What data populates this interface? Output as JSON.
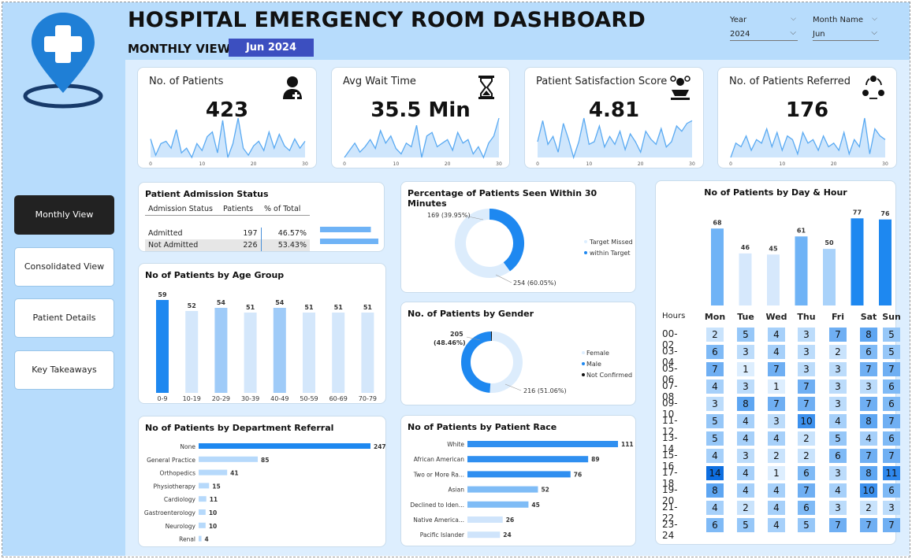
{
  "header": {
    "title": "HOSPITAL EMERGENCY ROOM DASHBOARD",
    "subtitle": "MONTHLY VIEW",
    "month_badge": "Jun 2024",
    "year_label": "Year",
    "year_value": "2024",
    "month_label": "Month Name",
    "month_value": "Jun"
  },
  "nav": [
    {
      "label": "Monthly View",
      "active": true
    },
    {
      "label": "Consolidated View",
      "active": false
    },
    {
      "label": "Patient Details",
      "active": false
    },
    {
      "label": "Key Takeaways",
      "active": false
    }
  ],
  "kpis": [
    {
      "title": "No. of Patients",
      "value": "423",
      "icon": "patient-icon"
    },
    {
      "title": "Avg Wait Time",
      "value": "35.5 Min",
      "icon": "hourglass-icon"
    },
    {
      "title": "Patient Satisfaction Score",
      "value": "4.81",
      "icon": "satisfaction-icon"
    },
    {
      "title": "No. of Patients Referred",
      "value": "176",
      "icon": "referral-icon"
    }
  ],
  "spark_ticks": [
    "0",
    "10",
    "20",
    "30"
  ],
  "colors": {
    "accent": "#1e88f0",
    "light": "#a9d2fa",
    "pale": "#d9ebfc",
    "header_bg": "#b7dcfc",
    "badge": "#3c4fc0"
  },
  "admission": {
    "title": "Patient Admission Status",
    "columns": [
      "Admission Status",
      "Patients",
      "% of Total"
    ],
    "rows": [
      {
        "status": "Admitted",
        "patients": "197",
        "pct": "46.57%",
        "value": 197
      },
      {
        "status": "Not Admitted",
        "patients": "226",
        "pct": "53.43%",
        "value": 226
      }
    ]
  },
  "seen30": {
    "title": "Percentage of Patients Seen Within 30 Minutes",
    "legend": [
      "Target Missed",
      "within Target"
    ],
    "label_a": "169 (39.95%)",
    "label_b": "254 (60.05%)"
  },
  "gender": {
    "title": "No. of Patients by Gender",
    "legend": [
      "Female",
      "Male",
      "Not Confirmed"
    ],
    "label_a": "205",
    "label_a2": "(48.46%)",
    "label_b": "216 (51.06%)"
  },
  "age": {
    "title": "No of Patients by Age Group"
  },
  "dept": {
    "title": "No of Patients by Department Referral"
  },
  "race": {
    "title": "No of Patients by Patient Race"
  },
  "dayhour": {
    "title": "No of Patients by Day & Hour",
    "hours_label": "Hours"
  },
  "chart_data": [
    {
      "type": "pie",
      "title": "Percentage of Patients Seen Within 30 Minutes",
      "categories": [
        "Target Missed",
        "within Target"
      ],
      "values": [
        169,
        254
      ]
    },
    {
      "type": "pie",
      "title": "No. of Patients by Gender",
      "categories": [
        "Female",
        "Male",
        "Not Confirmed"
      ],
      "values": [
        216,
        205,
        2
      ]
    },
    {
      "type": "bar",
      "title": "No of Patients by Age Group",
      "categories": [
        "0-9",
        "10-19",
        "20-29",
        "30-39",
        "40-49",
        "50-59",
        "60-69",
        "70-79"
      ],
      "values": [
        59,
        52,
        54,
        51,
        54,
        51,
        51,
        51
      ]
    },
    {
      "type": "bar",
      "orientation": "horizontal",
      "title": "No of Patients by Department Referral",
      "categories": [
        "None",
        "General Practice",
        "Orthopedics",
        "Physiotherapy",
        "Cardiology",
        "Gastroenterology",
        "Neurology",
        "Renal"
      ],
      "values": [
        247,
        85,
        41,
        15,
        11,
        10,
        10,
        4
      ]
    },
    {
      "type": "bar",
      "orientation": "horizontal",
      "title": "No of Patients by Patient Race",
      "categories": [
        "White",
        "African American",
        "Two or More Ra...",
        "Asian",
        "Declined to Iden...",
        "Native America...",
        "Pacific Islander"
      ],
      "values": [
        111,
        89,
        76,
        52,
        45,
        26,
        24
      ]
    },
    {
      "type": "bar",
      "title": "No of Patients by Day & Hour",
      "categories": [
        "Mon",
        "Tue",
        "Wed",
        "Thu",
        "Fri",
        "Sat",
        "Sun"
      ],
      "values": [
        68,
        46,
        45,
        61,
        50,
        77,
        76
      ]
    },
    {
      "type": "heatmap",
      "title": "No of Patients by Day & Hour",
      "x": [
        "Mon",
        "Tue",
        "Wed",
        "Thu",
        "Fri",
        "Sat",
        "Sun"
      ],
      "y": [
        "00-02",
        "03-04",
        "05-06",
        "07-08",
        "09-10",
        "11-12",
        "13-14",
        "15-16",
        "17-18",
        "19-20",
        "21-22",
        "23-24"
      ],
      "values": [
        [
          2,
          5,
          4,
          3,
          7,
          8,
          5
        ],
        [
          6,
          3,
          4,
          3,
          2,
          6,
          5
        ],
        [
          7,
          1,
          7,
          3,
          3,
          7,
          7
        ],
        [
          4,
          3,
          1,
          7,
          3,
          3,
          6
        ],
        [
          3,
          8,
          7,
          7,
          3,
          7,
          6
        ],
        [
          5,
          4,
          3,
          10,
          4,
          8,
          7
        ],
        [
          5,
          4,
          4,
          2,
          5,
          4,
          6
        ],
        [
          4,
          3,
          2,
          2,
          6,
          7,
          7
        ],
        [
          14,
          4,
          1,
          6,
          3,
          8,
          11
        ],
        [
          8,
          4,
          4,
          7,
          4,
          10,
          6
        ],
        [
          4,
          2,
          4,
          6,
          3,
          2,
          3
        ],
        [
          6,
          5,
          4,
          5,
          7,
          7,
          7
        ]
      ]
    },
    {
      "type": "area",
      "title": "No. of Patients",
      "x_range": [
        0,
        30
      ],
      "values": [
        16,
        9,
        14,
        15,
        12,
        20,
        10,
        12,
        8,
        14,
        11,
        17,
        19,
        10,
        24,
        8,
        14,
        25,
        12,
        9,
        13,
        15,
        11,
        19,
        12,
        18,
        13,
        11,
        16,
        12,
        15
      ]
    },
    {
      "type": "area",
      "title": "Avg Wait Time",
      "x_range": [
        0,
        30
      ],
      "values": [
        30,
        34,
        38,
        33,
        36,
        40,
        35,
        45,
        38,
        42,
        35,
        32,
        38,
        36,
        48,
        30,
        42,
        44,
        36,
        38,
        40,
        34,
        44,
        38,
        40,
        32,
        36,
        30,
        38,
        42,
        52
      ]
    },
    {
      "type": "area",
      "title": "Patient Satisfaction Score",
      "x_range": [
        0,
        30
      ],
      "values": [
        4.6,
        5.4,
        4.5,
        4.8,
        4.2,
        5.3,
        4.7,
        4.0,
        4.6,
        5.5,
        4.5,
        4.6,
        5.2,
        4.4,
        4.8,
        4.5,
        5.0,
        4.3,
        4.9,
        4.6,
        4.2,
        5.0,
        4.7,
        4.5,
        5.1,
        4.4,
        4.6,
        5.2,
        5.0,
        5.3,
        5.4
      ]
    },
    {
      "type": "area",
      "title": "No. of Patients Referred",
      "x_range": [
        0,
        30
      ],
      "values": [
        5,
        9,
        8,
        11,
        7,
        10,
        9,
        13,
        8,
        12,
        7,
        11,
        10,
        6,
        12,
        9,
        10,
        7,
        11,
        8,
        9,
        7,
        12,
        6,
        10,
        8,
        16,
        6,
        13,
        11,
        10
      ]
    }
  ]
}
